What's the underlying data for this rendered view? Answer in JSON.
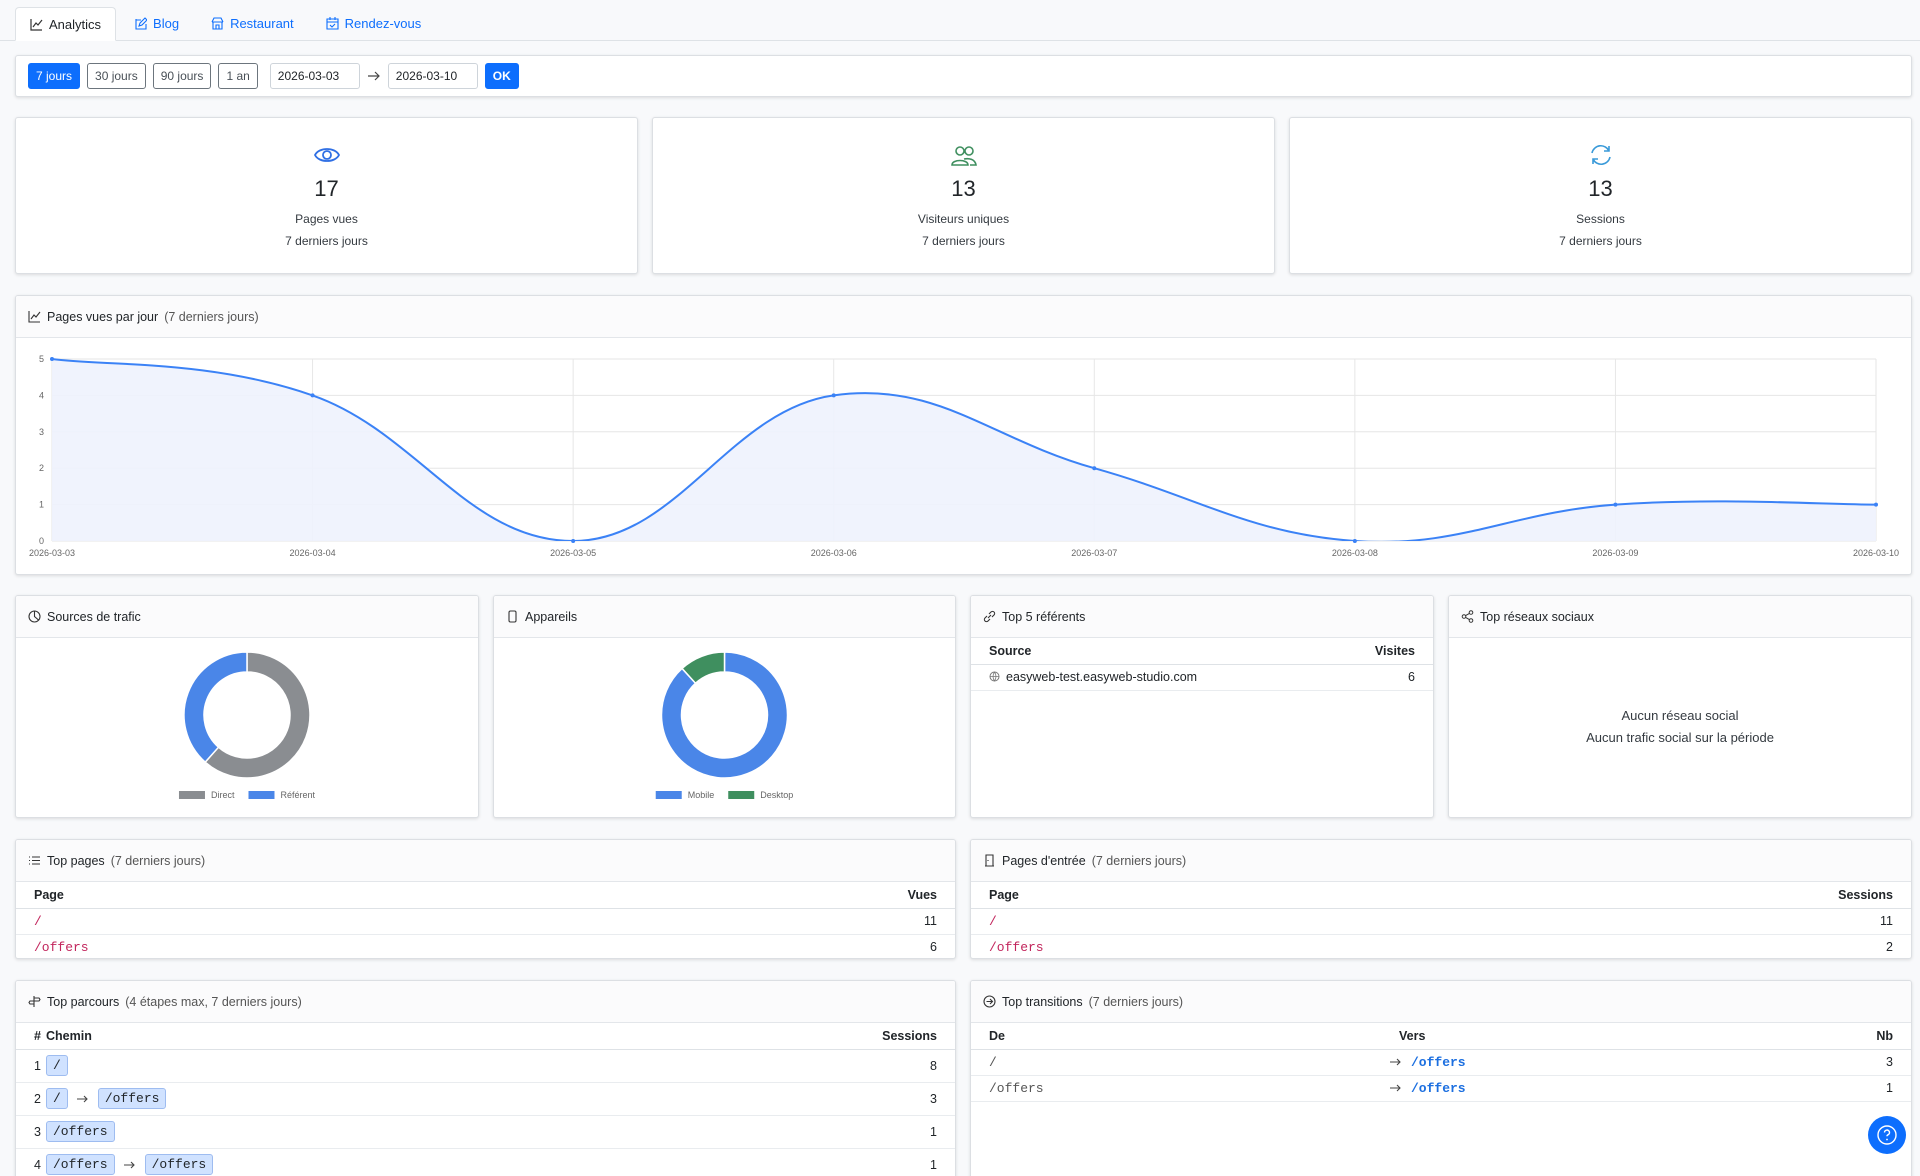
{
  "tabs": [
    "Analytics",
    "Blog",
    "Restaurant",
    "Rendez-vous"
  ],
  "filters": {
    "ranges": [
      "7 jours",
      "30 jours",
      "90 jours",
      "1 an"
    ],
    "date_from": "2026-03-03",
    "date_to": "2026-03-10",
    "submit": "OK"
  },
  "stats": [
    {
      "value": "17",
      "label": "Pages vues",
      "sub": "7 derniers jours"
    },
    {
      "value": "13",
      "label": "Visiteurs uniques",
      "sub": "7 derniers jours"
    },
    {
      "value": "13",
      "label": "Sessions",
      "sub": "7 derniers jours"
    }
  ],
  "chart_data": [
    {
      "type": "line",
      "title": "Pages vues par jour",
      "subtitle": "(7 derniers jours)",
      "x": [
        "2026-03-03",
        "2026-03-04",
        "2026-03-05",
        "2026-03-06",
        "2026-03-07",
        "2026-03-08",
        "2026-03-09",
        "2026-03-10"
      ],
      "values": [
        5,
        4,
        0,
        4,
        2,
        0,
        1,
        1
      ],
      "color": "#3b82f6",
      "fill": "#eef2fd",
      "ylim": [
        0,
        5
      ],
      "yticks": [
        0,
        1,
        2,
        3,
        4,
        5
      ],
      "grid": true
    },
    {
      "type": "doughnut",
      "title": "Sources de trafic",
      "categories": [
        "Direct",
        "Référent"
      ],
      "values": [
        8,
        5
      ],
      "colors": [
        "#8a8d91",
        "#4a86e8"
      ]
    },
    {
      "type": "doughnut",
      "title": "Appareils",
      "categories": [
        "Mobile",
        "Desktop"
      ],
      "values": [
        15,
        2
      ],
      "colors": [
        "#4a86e8",
        "#3f8f5f"
      ]
    }
  ],
  "referrers": {
    "title": "Top 5 référents",
    "headers": [
      "Source",
      "Visites"
    ],
    "rows": [
      [
        "easyweb-test.easyweb-studio.com",
        "6"
      ]
    ]
  },
  "social": {
    "title": "Top réseaux sociaux",
    "empty": "Aucun réseau social",
    "empty_sub": "Aucun trafic social sur la période"
  },
  "top_pages": {
    "title": "Top pages",
    "subtitle": "(7 derniers jours)",
    "headers": [
      "Page",
      "Vues"
    ],
    "rows": [
      [
        "/",
        "11"
      ],
      [
        "/offers",
        "6"
      ]
    ]
  },
  "entry_pages": {
    "title": "Pages d'entrée",
    "subtitle": "(7 derniers jours)",
    "headers": [
      "Page",
      "Sessions"
    ],
    "rows": [
      [
        "/",
        "11"
      ],
      [
        "/offers",
        "2"
      ]
    ]
  },
  "paths": {
    "title": "Top parcours",
    "subtitle": "(4 étapes max, 7 derniers jours)",
    "headers": [
      "#",
      "Chemin",
      "Sessions"
    ],
    "rows": [
      {
        "rank": "1",
        "steps": [
          "/"
        ],
        "sessions": "8"
      },
      {
        "rank": "2",
        "steps": [
          "/",
          "/offers"
        ],
        "sessions": "3"
      },
      {
        "rank": "3",
        "steps": [
          "/offers"
        ],
        "sessions": "1"
      },
      {
        "rank": "4",
        "steps": [
          "/offers",
          "/offers"
        ],
        "sessions": "1"
      }
    ]
  },
  "transitions": {
    "title": "Top transitions",
    "subtitle": "(7 derniers jours)",
    "headers": [
      "De",
      "Vers",
      "Nb"
    ],
    "rows": [
      [
        "/",
        "/offers",
        "3"
      ],
      [
        "/offers",
        "/offers",
        "1"
      ]
    ]
  }
}
